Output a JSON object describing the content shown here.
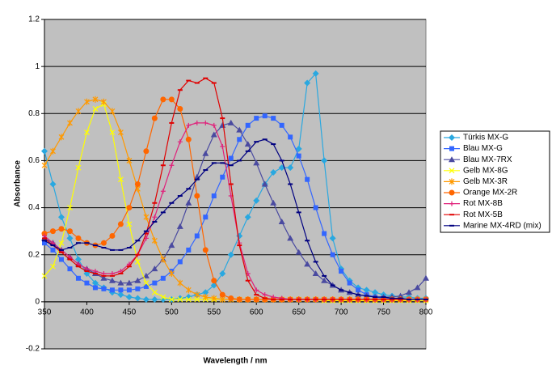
{
  "chart_data": {
    "type": "line",
    "x_label": "Wavelength / nm",
    "y_label": "Absorbance",
    "xlim": [
      350,
      800
    ],
    "xticks": [
      350,
      400,
      450,
      500,
      550,
      600,
      650,
      700,
      750,
      800
    ],
    "ylim": [
      -0.2,
      1.2
    ],
    "yticks": [
      -0.2,
      0,
      0.2,
      0.4,
      0.6,
      0.8,
      1,
      1.2
    ],
    "grid": true,
    "legend": "right",
    "x": [
      350,
      360,
      370,
      380,
      390,
      400,
      410,
      420,
      430,
      440,
      450,
      460,
      470,
      480,
      490,
      500,
      510,
      520,
      530,
      540,
      550,
      560,
      570,
      580,
      590,
      600,
      610,
      620,
      630,
      640,
      650,
      660,
      670,
      680,
      690,
      700,
      710,
      720,
      730,
      740,
      750,
      760,
      770,
      780,
      790,
      800
    ],
    "series": [
      {
        "name": "Türkis MX-G",
        "color": "#29a8e0",
        "marker": "diamond",
        "values": [
          0.64,
          0.5,
          0.36,
          0.27,
          0.18,
          0.12,
          0.08,
          0.06,
          0.04,
          0.03,
          0.02,
          0.015,
          0.01,
          0.01,
          0.01,
          0.01,
          0.015,
          0.02,
          0.03,
          0.04,
          0.07,
          0.12,
          0.2,
          0.28,
          0.36,
          0.43,
          0.5,
          0.55,
          0.57,
          0.57,
          0.65,
          0.93,
          0.97,
          0.6,
          0.27,
          0.14,
          0.09,
          0.06,
          0.05,
          0.04,
          0.03,
          0.025,
          0.02,
          0.02,
          0.015,
          0.015
        ]
      },
      {
        "name": "Blau MX-G",
        "color": "#3366ff",
        "marker": "square",
        "values": [
          0.25,
          0.22,
          0.18,
          0.14,
          0.1,
          0.08,
          0.06,
          0.055,
          0.05,
          0.05,
          0.05,
          0.055,
          0.065,
          0.08,
          0.1,
          0.13,
          0.17,
          0.22,
          0.28,
          0.36,
          0.45,
          0.53,
          0.61,
          0.69,
          0.75,
          0.78,
          0.79,
          0.78,
          0.75,
          0.7,
          0.62,
          0.52,
          0.4,
          0.29,
          0.2,
          0.13,
          0.08,
          0.05,
          0.03,
          0.02,
          0.015,
          0.01,
          0.01,
          0.01,
          0.01,
          0.01
        ]
      },
      {
        "name": "Blau MX-7RX",
        "color": "#4a4aa0",
        "marker": "triangle",
        "values": [
          0.27,
          0.25,
          0.22,
          0.19,
          0.16,
          0.14,
          0.12,
          0.1,
          0.09,
          0.08,
          0.08,
          0.09,
          0.11,
          0.14,
          0.18,
          0.24,
          0.32,
          0.42,
          0.53,
          0.63,
          0.71,
          0.75,
          0.76,
          0.73,
          0.67,
          0.59,
          0.5,
          0.42,
          0.34,
          0.27,
          0.21,
          0.16,
          0.12,
          0.09,
          0.07,
          0.05,
          0.04,
          0.03,
          0.025,
          0.02,
          0.02,
          0.02,
          0.025,
          0.04,
          0.06,
          0.1
        ]
      },
      {
        "name": "Gelb MX-8G",
        "color": "#ffff00",
        "marker": "x",
        "values": [
          0.11,
          0.15,
          0.25,
          0.4,
          0.57,
          0.72,
          0.82,
          0.84,
          0.72,
          0.52,
          0.33,
          0.17,
          0.08,
          0.04,
          0.02,
          0.01,
          0.01,
          0.01,
          0.01,
          0.01,
          0.01,
          0.01,
          0.01,
          0.01,
          0.01,
          0.01,
          0.01,
          0.01,
          0.01,
          0.01,
          0.01,
          0.01,
          0.01,
          0.005,
          0.005,
          0.005,
          0.005,
          0.005,
          0.005,
          0.005,
          0.005,
          0.005,
          0.005,
          0.005,
          0.005,
          0.005
        ]
      },
      {
        "name": "Gelb MX-3R",
        "color": "#ff9900",
        "marker": "asterisk",
        "values": [
          0.58,
          0.64,
          0.7,
          0.76,
          0.81,
          0.85,
          0.86,
          0.85,
          0.81,
          0.72,
          0.6,
          0.48,
          0.36,
          0.26,
          0.18,
          0.12,
          0.08,
          0.05,
          0.03,
          0.02,
          0.015,
          0.01,
          0.01,
          0.01,
          0.01,
          0.01,
          0.01,
          0.01,
          0.01,
          0.01,
          0.01,
          0.01,
          0.01,
          0.01,
          0.01,
          0.01,
          0.01,
          0.01,
          0.01,
          0.01,
          0.01,
          0.01,
          0.01,
          0.01,
          0.01,
          0.01
        ]
      },
      {
        "name": "Orange MX-2R",
        "color": "#ff6600",
        "marker": "circle",
        "values": [
          0.29,
          0.3,
          0.31,
          0.3,
          0.27,
          0.25,
          0.24,
          0.25,
          0.28,
          0.33,
          0.4,
          0.5,
          0.64,
          0.78,
          0.86,
          0.86,
          0.82,
          0.69,
          0.45,
          0.22,
          0.09,
          0.03,
          0.015,
          0.01,
          0.01,
          0.01,
          0.01,
          0.01,
          0.01,
          0.01,
          0.01,
          0.01,
          0.01,
          0.01,
          0.01,
          0.01,
          0.01,
          0.01,
          0.01,
          0.01,
          0.01,
          0.01,
          0.01,
          0.01,
          0.01,
          0.01
        ]
      },
      {
        "name": "Rot MX-8B",
        "color": "#e0207a",
        "marker": "plus",
        "values": [
          0.28,
          0.25,
          0.22,
          0.19,
          0.16,
          0.14,
          0.13,
          0.12,
          0.12,
          0.13,
          0.16,
          0.2,
          0.27,
          0.36,
          0.47,
          0.58,
          0.68,
          0.75,
          0.76,
          0.76,
          0.75,
          0.66,
          0.45,
          0.25,
          0.12,
          0.05,
          0.03,
          0.02,
          0.015,
          0.01,
          0.01,
          0.01,
          0.01,
          0.01,
          0.01,
          0.01,
          0.01,
          0.01,
          0.01,
          0.01,
          0.01,
          0.01,
          0.01,
          0.01,
          0.01,
          0.01
        ]
      },
      {
        "name": "Rot MX-5B",
        "color": "#e00000",
        "marker": "dash",
        "values": [
          0.27,
          0.24,
          0.21,
          0.18,
          0.15,
          0.13,
          0.12,
          0.11,
          0.11,
          0.12,
          0.15,
          0.2,
          0.29,
          0.42,
          0.58,
          0.76,
          0.9,
          0.94,
          0.93,
          0.95,
          0.93,
          0.78,
          0.5,
          0.24,
          0.09,
          0.03,
          0.015,
          0.01,
          0.01,
          0.01,
          0.01,
          0.01,
          0.01,
          0.01,
          0.01,
          0.01,
          0.01,
          0.01,
          0.01,
          0.01,
          0.01,
          0.01,
          0.01,
          0.01,
          0.01,
          0.01
        ]
      },
      {
        "name": "Marine MX-4RD (mix)",
        "color": "#000080",
        "marker": "dash",
        "values": [
          0.26,
          0.24,
          0.22,
          0.23,
          0.25,
          0.25,
          0.24,
          0.23,
          0.22,
          0.22,
          0.23,
          0.26,
          0.3,
          0.34,
          0.38,
          0.42,
          0.45,
          0.48,
          0.52,
          0.56,
          0.59,
          0.59,
          0.58,
          0.6,
          0.64,
          0.68,
          0.69,
          0.67,
          0.6,
          0.5,
          0.38,
          0.26,
          0.17,
          0.11,
          0.07,
          0.05,
          0.04,
          0.03,
          0.025,
          0.02,
          0.02,
          0.015,
          0.015,
          0.01,
          0.01,
          0.01
        ]
      }
    ]
  }
}
